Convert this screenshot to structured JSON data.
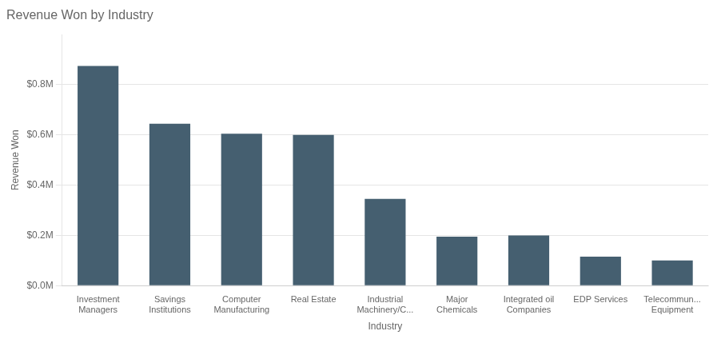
{
  "chart_data": {
    "type": "bar",
    "title": "Revenue Won by Industry",
    "xlabel": "Industry",
    "ylabel": "Revenue Won",
    "categories": [
      "Investment\nManagers",
      "Savings\nInstitutions",
      "Computer\nManufacturing",
      "Real Estate",
      "Industrial\nMachinery/C...",
      "Major\nChemicals",
      "Integrated oil\nCompanies",
      "EDP Services",
      "Telecommun...\nEquipment"
    ],
    "values": [
      0.875,
      0.645,
      0.605,
      0.6,
      0.345,
      0.195,
      0.2,
      0.115,
      0.1
    ],
    "color": "#455f70",
    "ylim": [
      0,
      1.0
    ],
    "yticks": [
      {
        "value": 0.0,
        "label": "$0.0M"
      },
      {
        "value": 0.2,
        "label": "$0.2M"
      },
      {
        "value": 0.4,
        "label": "$0.4M"
      },
      {
        "value": 0.6,
        "label": "$0.6M"
      },
      {
        "value": 0.8,
        "label": "$0.8M"
      }
    ],
    "grid": true
  }
}
